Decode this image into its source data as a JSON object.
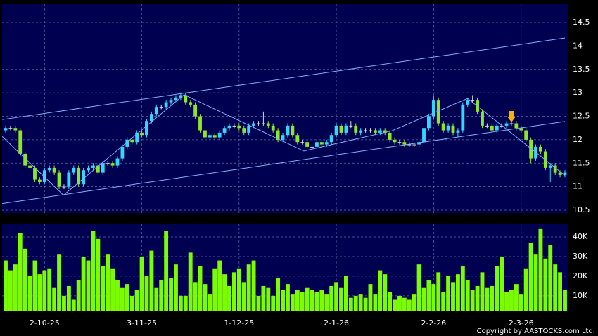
{
  "chart_data": {
    "type": "candlestick",
    "categories": [
      null,
      null,
      null,
      null,
      null,
      null,
      null,
      null,
      "2-10-25",
      null,
      null,
      null,
      null,
      null,
      null,
      null,
      null,
      null,
      null,
      null,
      null,
      null,
      null,
      null,
      null,
      null,
      null,
      null,
      "3-11-25",
      null,
      null,
      null,
      null,
      null,
      null,
      null,
      null,
      null,
      null,
      null,
      null,
      null,
      null,
      null,
      null,
      null,
      null,
      null,
      "1-12-25",
      null,
      null,
      null,
      null,
      null,
      null,
      null,
      null,
      null,
      null,
      null,
      null,
      null,
      null,
      null,
      null,
      null,
      null,
      null,
      "2-1-26",
      null,
      null,
      null,
      null,
      null,
      null,
      null,
      null,
      null,
      null,
      null,
      null,
      null,
      null,
      null,
      null,
      null,
      null,
      null,
      "2-2-26",
      null,
      null,
      null,
      null,
      null,
      null,
      null,
      null,
      null,
      null,
      null,
      null,
      null,
      null,
      null,
      null,
      null,
      "2-3-26",
      null,
      null,
      null,
      null,
      null,
      null,
      null,
      null,
      null
    ],
    "ohlc": [
      [
        12.2,
        12.3,
        12.15,
        12.25
      ],
      [
        12.25,
        12.3,
        12.2,
        12.25
      ],
      [
        12.25,
        12.3,
        12.15,
        12.2
      ],
      [
        12.2,
        12.25,
        11.65,
        11.7
      ],
      [
        11.7,
        11.75,
        11.4,
        11.45
      ],
      [
        11.45,
        11.5,
        11.35,
        11.4
      ],
      [
        11.4,
        11.45,
        11.1,
        11.15
      ],
      [
        11.15,
        11.2,
        11.05,
        11.1
      ],
      [
        11.1,
        11.4,
        11.05,
        11.35
      ],
      [
        11.35,
        11.45,
        11.3,
        11.4
      ],
      [
        11.4,
        11.45,
        11.25,
        11.3
      ],
      [
        11.3,
        11.35,
        10.95,
        11.0
      ],
      [
        11.0,
        11.05,
        10.95,
        11.0
      ],
      [
        11.0,
        11.35,
        10.95,
        11.3
      ],
      [
        11.3,
        11.45,
        11.25,
        11.4
      ],
      [
        11.4,
        11.45,
        11.0,
        11.05
      ],
      [
        11.05,
        11.4,
        11.0,
        11.35
      ],
      [
        11.35,
        11.45,
        11.3,
        11.4
      ],
      [
        11.4,
        11.5,
        11.35,
        11.45
      ],
      [
        11.45,
        11.5,
        11.25,
        11.3
      ],
      [
        11.3,
        11.55,
        11.25,
        11.5
      ],
      [
        11.5,
        11.55,
        11.45,
        11.5
      ],
      [
        11.5,
        11.55,
        11.4,
        11.45
      ],
      [
        11.45,
        11.65,
        11.4,
        11.6
      ],
      [
        11.6,
        11.9,
        11.55,
        11.85
      ],
      [
        11.85,
        12.05,
        11.8,
        12.0
      ],
      [
        12.0,
        12.05,
        11.9,
        11.95
      ],
      [
        11.95,
        12.2,
        11.9,
        12.15
      ],
      [
        12.15,
        12.2,
        12.05,
        12.1
      ],
      [
        12.1,
        12.45,
        12.05,
        12.4
      ],
      [
        12.4,
        12.6,
        12.35,
        12.55
      ],
      [
        12.55,
        12.75,
        12.5,
        12.7
      ],
      [
        12.7,
        12.75,
        12.65,
        12.7
      ],
      [
        12.7,
        12.85,
        12.65,
        12.8
      ],
      [
        12.8,
        12.9,
        12.75,
        12.85
      ],
      [
        12.85,
        12.95,
        12.8,
        12.9
      ],
      [
        12.9,
        13.0,
        12.85,
        12.95
      ],
      [
        12.95,
        13.0,
        12.75,
        12.8
      ],
      [
        12.8,
        12.85,
        12.7,
        12.75
      ],
      [
        12.75,
        12.8,
        12.45,
        12.5
      ],
      [
        12.5,
        12.55,
        12.15,
        12.2
      ],
      [
        12.2,
        12.25,
        12.0,
        12.05
      ],
      [
        12.05,
        12.15,
        12.0,
        12.1
      ],
      [
        12.1,
        12.15,
        12.0,
        12.05
      ],
      [
        12.05,
        12.2,
        12.0,
        12.15
      ],
      [
        12.15,
        12.3,
        12.1,
        12.25
      ],
      [
        12.25,
        12.35,
        12.2,
        12.3
      ],
      [
        12.3,
        12.35,
        12.25,
        12.3
      ],
      [
        12.3,
        12.35,
        12.2,
        12.25
      ],
      [
        12.25,
        12.3,
        12.1,
        12.15
      ],
      [
        12.15,
        12.35,
        12.1,
        12.3
      ],
      [
        12.3,
        12.4,
        12.25,
        12.35
      ],
      [
        12.35,
        12.4,
        12.3,
        12.35
      ],
      [
        12.35,
        12.6,
        12.3,
        12.35
      ],
      [
        12.35,
        12.4,
        12.25,
        12.3
      ],
      [
        12.3,
        12.35,
        12.15,
        12.2
      ],
      [
        12.2,
        12.25,
        11.95,
        12.0
      ],
      [
        12.0,
        12.15,
        11.95,
        12.1
      ],
      [
        12.1,
        12.35,
        12.05,
        12.3
      ],
      [
        12.3,
        12.35,
        12.05,
        12.1
      ],
      [
        12.1,
        12.15,
        11.9,
        11.95
      ],
      [
        11.95,
        12.0,
        11.9,
        11.95
      ],
      [
        11.95,
        12.0,
        11.8,
        11.85
      ],
      [
        11.85,
        11.9,
        11.8,
        11.85
      ],
      [
        11.85,
        12.0,
        11.8,
        11.95
      ],
      [
        11.95,
        12.0,
        11.85,
        11.9
      ],
      [
        11.9,
        12.0,
        11.85,
        11.95
      ],
      [
        11.95,
        12.15,
        11.9,
        12.1
      ],
      [
        12.1,
        12.35,
        12.05,
        12.3
      ],
      [
        12.3,
        12.35,
        12.1,
        12.15
      ],
      [
        12.15,
        12.35,
        12.1,
        12.3
      ],
      [
        12.3,
        12.4,
        12.25,
        12.3
      ],
      [
        12.3,
        12.35,
        12.1,
        12.15
      ],
      [
        12.15,
        12.25,
        12.1,
        12.2
      ],
      [
        12.2,
        12.25,
        12.15,
        12.2
      ],
      [
        12.2,
        12.25,
        12.15,
        12.2
      ],
      [
        12.2,
        12.25,
        12.1,
        12.15
      ],
      [
        12.15,
        12.25,
        12.1,
        12.2
      ],
      [
        12.2,
        12.25,
        12.1,
        12.15
      ],
      [
        12.15,
        12.2,
        11.95,
        12.0
      ],
      [
        12.0,
        12.05,
        11.9,
        11.95
      ],
      [
        11.95,
        12.0,
        11.9,
        11.95
      ],
      [
        11.95,
        12.0,
        11.85,
        11.9
      ],
      [
        11.9,
        11.95,
        11.85,
        11.9
      ],
      [
        11.9,
        11.95,
        11.85,
        11.9
      ],
      [
        11.9,
        12.0,
        11.85,
        11.95
      ],
      [
        11.95,
        12.3,
        11.9,
        12.25
      ],
      [
        12.25,
        12.55,
        12.2,
        12.5
      ],
      [
        12.5,
        12.95,
        12.45,
        12.85
      ],
      [
        12.85,
        12.9,
        12.3,
        12.35
      ],
      [
        12.35,
        12.4,
        12.15,
        12.2
      ],
      [
        12.2,
        12.35,
        12.15,
        12.3
      ],
      [
        12.3,
        12.35,
        12.1,
        12.15
      ],
      [
        12.15,
        12.25,
        12.05,
        12.2
      ],
      [
        12.2,
        12.8,
        12.15,
        12.75
      ],
      [
        12.75,
        12.9,
        12.7,
        12.85
      ],
      [
        12.85,
        12.95,
        12.8,
        12.85
      ],
      [
        12.85,
        12.9,
        12.55,
        12.6
      ],
      [
        12.6,
        12.65,
        12.25,
        12.3
      ],
      [
        12.3,
        12.35,
        12.25,
        12.3
      ],
      [
        12.3,
        12.35,
        12.15,
        12.2
      ],
      [
        12.2,
        12.35,
        12.15,
        12.3
      ],
      [
        12.3,
        12.35,
        12.25,
        12.3
      ],
      [
        12.3,
        12.4,
        12.25,
        12.35
      ],
      [
        12.35,
        12.6,
        12.3,
        12.35
      ],
      [
        12.35,
        12.4,
        12.2,
        12.25
      ],
      [
        12.25,
        12.3,
        12.15,
        12.2
      ],
      [
        12.2,
        12.25,
        11.95,
        12.0
      ],
      [
        12.0,
        12.05,
        11.5,
        11.6
      ],
      [
        11.6,
        11.9,
        11.55,
        11.85
      ],
      [
        11.85,
        11.9,
        11.7,
        11.75
      ],
      [
        11.75,
        11.8,
        11.35,
        11.4
      ],
      [
        11.4,
        11.5,
        11.1,
        11.45
      ],
      [
        11.45,
        11.5,
        11.25,
        11.3
      ],
      [
        11.3,
        11.35,
        11.2,
        11.25
      ],
      [
        11.25,
        11.35,
        11.2,
        11.3
      ]
    ],
    "up_color": "#33d6ff",
    "down_color": "#8ce62a",
    "ylim": [
      10.44,
      14.89
    ],
    "yticks": [
      10.5,
      11,
      11.5,
      12,
      12.5,
      13,
      13.5,
      14,
      14.5
    ],
    "grid": true,
    "trendlines": [
      {
        "x": [
          -0.7,
          115
        ],
        "y": [
          12.43,
          14.17
        ],
        "color": "#7fb2ff"
      },
      {
        "x": [
          -0.7,
          115
        ],
        "y": [
          10.64,
          12.39
        ],
        "color": "#7fb2ff"
      },
      {
        "x": [
          -0.7,
          11.9,
          36.7,
          61.3,
          79.4,
          95.0,
          115
        ],
        "y": [
          12.07,
          10.82,
          12.96,
          11.76,
          12.19,
          12.88,
          11.24
        ],
        "color": "#7fb2ff"
      }
    ],
    "volume": {
      "type": "bar",
      "color": "#7cfc00",
      "values": [
        28000,
        23000,
        26000,
        42000,
        34000,
        20000,
        28000,
        21000,
        23000,
        24000,
        14000,
        31000,
        10000,
        15000,
        8000,
        18000,
        30000,
        28000,
        43000,
        39000,
        25000,
        31000,
        24000,
        18000,
        14000,
        16000,
        10000,
        13000,
        30000,
        20000,
        33000,
        14000,
        18000,
        43000,
        19000,
        26000,
        10000,
        10000,
        32000,
        17000,
        25000,
        16000,
        11000,
        24000,
        28000,
        21000,
        15000,
        22000,
        24000,
        17000,
        26000,
        28000,
        10000,
        15000,
        14000,
        10000,
        19000,
        13000,
        16000,
        11000,
        13000,
        12000,
        14000,
        13000,
        12000,
        13000,
        11000,
        15000,
        17000,
        14000,
        20000,
        9000,
        10000,
        11000,
        9000,
        16000,
        11000,
        23000,
        21000,
        12000,
        8000,
        10000,
        9000,
        8000,
        11000,
        26000,
        14000,
        18000,
        16000,
        22000,
        12000,
        20000,
        17000,
        21000,
        25000,
        18000,
        13000,
        15000,
        22000,
        14000,
        15000,
        25000,
        30000,
        12000,
        13000,
        16000,
        11000,
        24000,
        37000,
        31000,
        44000,
        29000,
        36000,
        26000,
        22000,
        13000
      ],
      "ylim": [
        2100,
        46800
      ],
      "yticks": [
        {
          "value": 10000,
          "label": "10K"
        },
        {
          "value": 20000,
          "label": "20K"
        },
        {
          "value": 30000,
          "label": "30K"
        },
        {
          "value": 40000,
          "label": "40K"
        }
      ]
    },
    "source": "Copyright by AASTOCKS.com Ltd."
  }
}
